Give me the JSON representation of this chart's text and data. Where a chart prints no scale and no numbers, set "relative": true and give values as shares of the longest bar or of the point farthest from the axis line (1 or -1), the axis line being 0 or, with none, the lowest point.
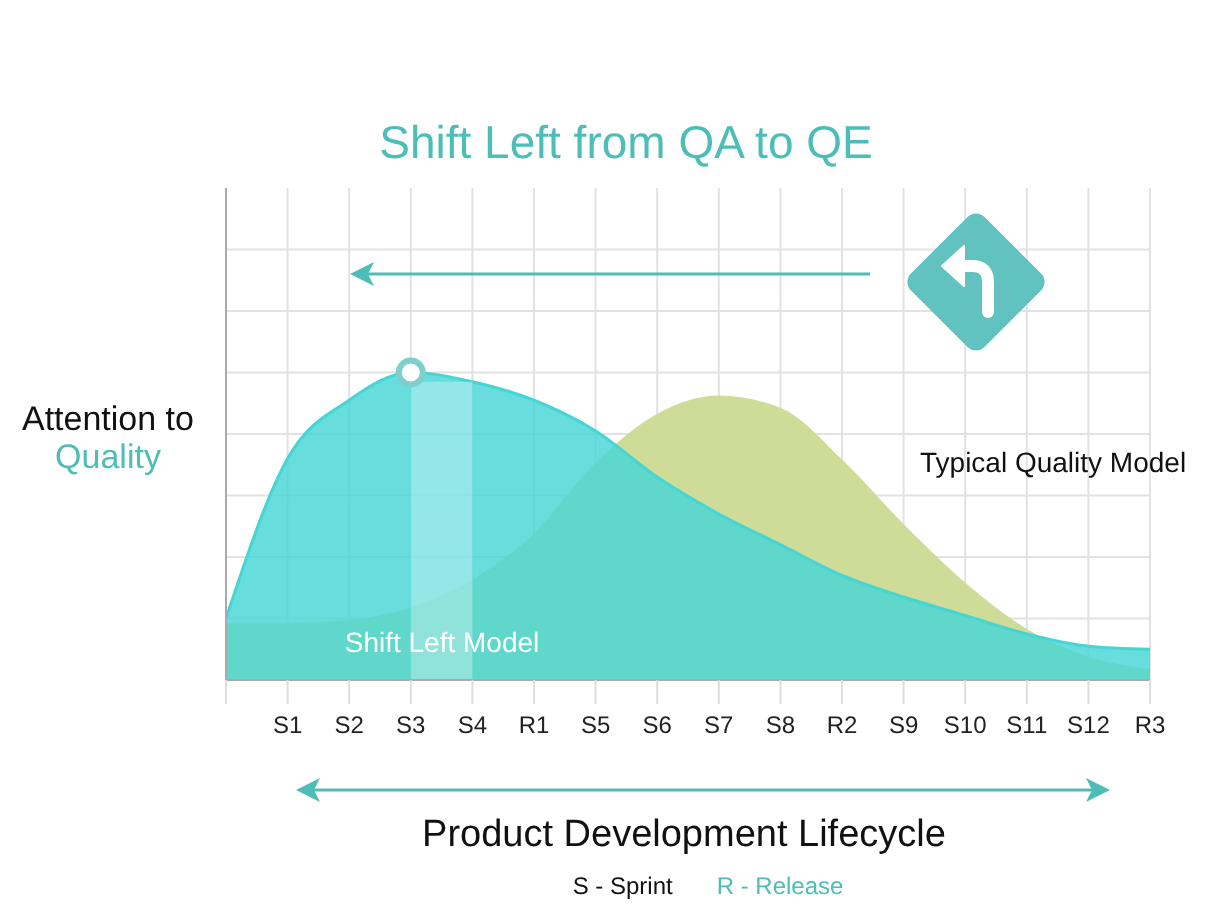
{
  "chart_data": {
    "type": "area",
    "title": "Shift Left from QA to QE",
    "xlabel": "Product Development Lifecycle",
    "ylabel": "Attention to Quality",
    "annotations": [
      "S - Sprint",
      "R - Release"
    ],
    "categories": [
      null,
      "S1",
      "S2",
      "S3",
      "S4",
      "R1",
      "S5",
      "S6",
      "S7",
      "S8",
      "R2",
      "S9",
      "S10",
      "S11",
      "S12",
      "R3"
    ],
    "relative": true,
    "series": [
      {
        "name": "Typical Quality Model",
        "color": "#cfdc98",
        "values": [
          0.18,
          0.18,
          0.19,
          0.23,
          0.32,
          0.47,
          0.7,
          0.86,
          0.92,
          0.88,
          0.71,
          0.5,
          0.31,
          0.16,
          0.07,
          0.03
        ]
      },
      {
        "name": "Shift Left Model",
        "color": "#45d5d5",
        "values": [
          0.2,
          0.72,
          0.91,
          1,
          0.97,
          0.91,
          0.81,
          0.66,
          0.54,
          0.44,
          0.34,
          0.27,
          0.21,
          0.15,
          0.11,
          0.1
        ]
      },
      {
        "type": "scatter",
        "color": "#7fd0cc",
        "marker": "circle",
        "values": [
          null,
          null,
          null,
          1,
          null,
          null,
          null,
          null,
          null,
          null,
          null,
          null,
          null,
          null,
          null,
          null
        ]
      }
    ],
    "bands": [
      {
        "axis": "x",
        "from": "S3",
        "to": "S4",
        "color": "#ffffff"
      }
    ],
    "grid": true
  }
}
